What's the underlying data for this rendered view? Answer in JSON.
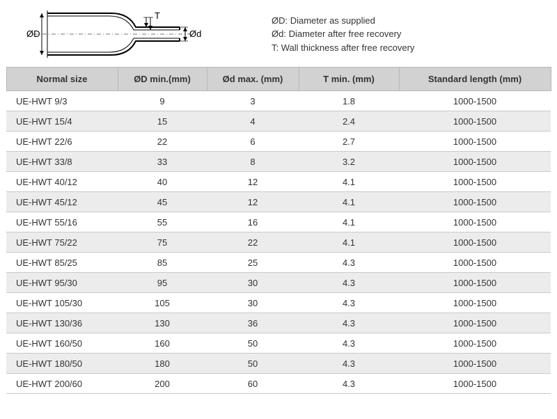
{
  "diagram": {
    "label_OD": "ØD",
    "label_Od": "Ød",
    "label_T": "T",
    "stroke": "#000000",
    "centerline": "#555555"
  },
  "legend": {
    "line1": "ØD: Diameter as supplied",
    "line2": "Ød:  Diameter after free recovery",
    "line3": "T:  Wall thickness after free recovery"
  },
  "table": {
    "header_bg": "#d2d2d2",
    "row_alt_bg": "#ececec",
    "border_color": "#c9c9c9",
    "columns": [
      "Normal size",
      "ØD min.(mm)",
      "Ød max. (mm)",
      "T min. (mm)",
      "Standard length (mm)"
    ],
    "rows": [
      [
        "UE-HWT 9/3",
        "9",
        "3",
        "1.8",
        "1000-1500"
      ],
      [
        "UE-HWT 15/4",
        "15",
        "4",
        "2.4",
        "1000-1500"
      ],
      [
        "UE-HWT 22/6",
        "22",
        "6",
        "2.7",
        "1000-1500"
      ],
      [
        "UE-HWT 33/8",
        "33",
        "8",
        "3.2",
        "1000-1500"
      ],
      [
        "UE-HWT 40/12",
        "40",
        "12",
        "4.1",
        "1000-1500"
      ],
      [
        "UE-HWT 45/12",
        "45",
        "12",
        "4.1",
        "1000-1500"
      ],
      [
        "UE-HWT 55/16",
        "55",
        "16",
        "4.1",
        "1000-1500"
      ],
      [
        "UE-HWT 75/22",
        "75",
        "22",
        "4.1",
        "1000-1500"
      ],
      [
        "UE-HWT 85/25",
        "85",
        "25",
        "4.3",
        "1000-1500"
      ],
      [
        "UE-HWT 95/30",
        "95",
        "30",
        "4.3",
        "1000-1500"
      ],
      [
        "UE-HWT 105/30",
        "105",
        "30",
        "4.3",
        "1000-1500"
      ],
      [
        "UE-HWT 130/36",
        "130",
        "36",
        "4.3",
        "1000-1500"
      ],
      [
        "UE-HWT 160/50",
        "160",
        "50",
        "4.3",
        "1000-1500"
      ],
      [
        "UE-HWT 180/50",
        "180",
        "50",
        "4.3",
        "1000-1500"
      ],
      [
        "UE-HWT 200/60",
        "200",
        "60",
        "4.3",
        "1000-1500"
      ]
    ]
  }
}
